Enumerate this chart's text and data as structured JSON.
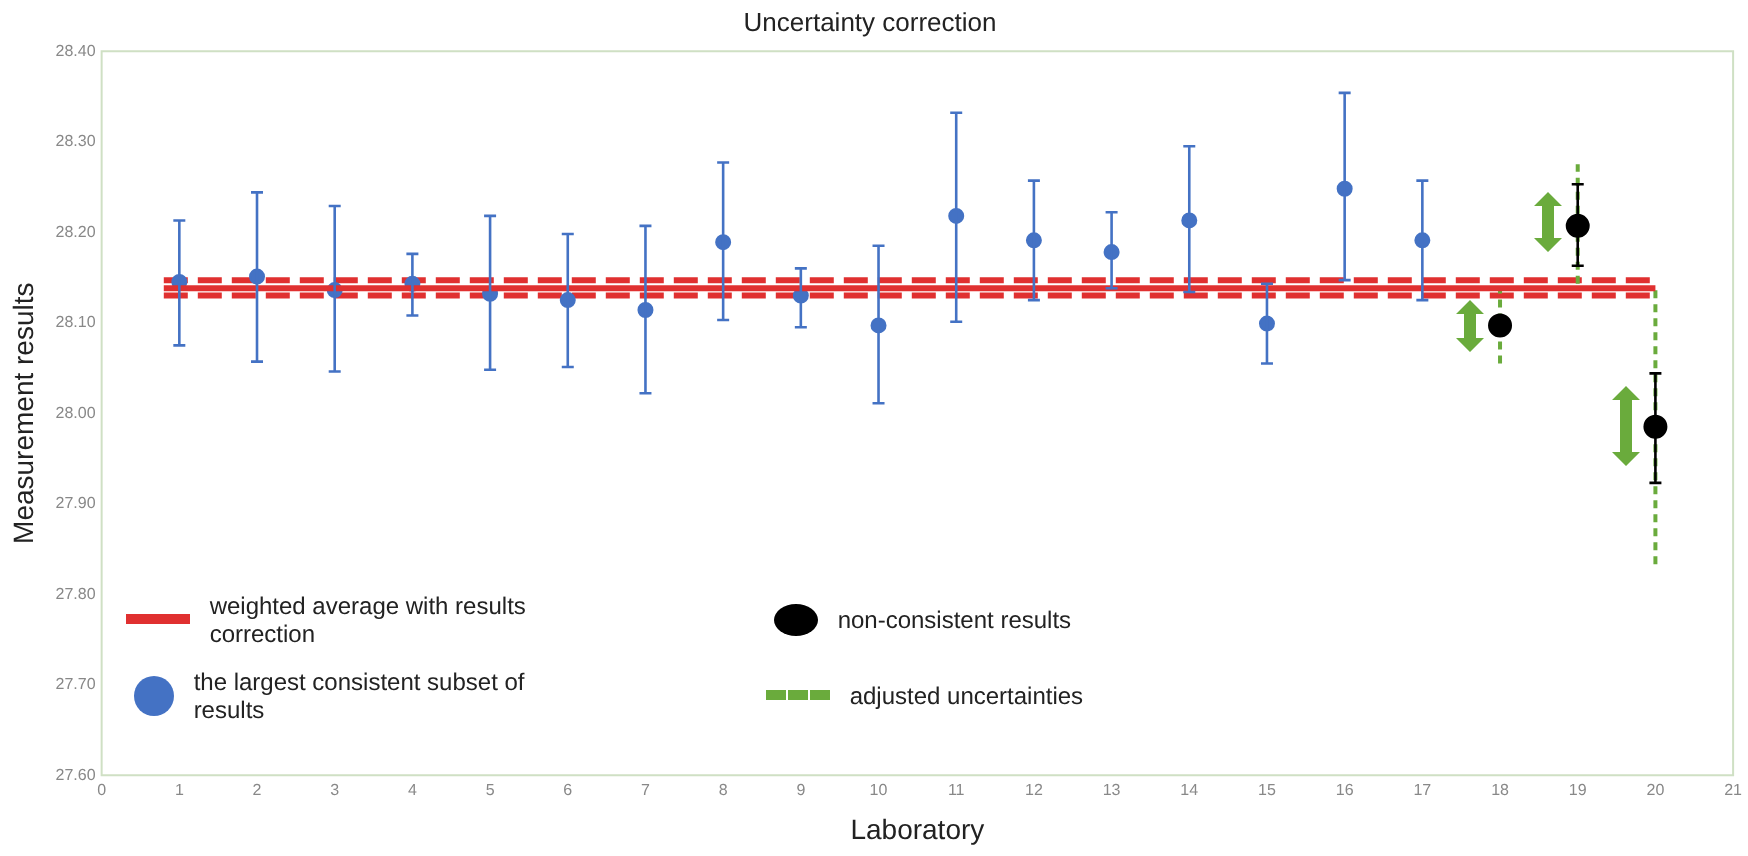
{
  "chart_data": {
    "type": "scatter",
    "title": "Uncertainty correction",
    "xlabel": "Laboratory",
    "ylabel": "Measurement results",
    "xlim": [
      0,
      21
    ],
    "xticks": [
      0,
      1,
      2,
      3,
      4,
      5,
      6,
      7,
      8,
      9,
      10,
      11,
      12,
      13,
      14,
      15,
      16,
      17,
      18,
      19,
      20,
      21
    ],
    "ylim": [
      27.6,
      28.4
    ],
    "yticks": [
      {
        "value": 27.6,
        "label": "27.60"
      },
      {
        "value": 27.7,
        "label": "27.70"
      },
      {
        "value": 27.8,
        "label": "27.80"
      },
      {
        "value": 27.9,
        "label": "27.90"
      },
      {
        "value": 28.0,
        "label": "28.00"
      },
      {
        "value": 28.1,
        "label": "28.10"
      },
      {
        "value": 28.2,
        "label": "28.20"
      },
      {
        "value": 28.3,
        "label": "28.30"
      },
      {
        "value": 28.4,
        "label": "28.40"
      }
    ],
    "grid": false,
    "legend": "bottom",
    "series": [
      {
        "name": "weighted average with results correction",
        "type": "line",
        "color": "#e03030",
        "line_style": "solid",
        "marker": "none",
        "x": [
          0.8,
          20
        ],
        "values": [
          28.138,
          28.138
        ]
      },
      {
        "name": "the largest consistent subset of results",
        "color": "#4472c4",
        "marker": "circle",
        "x": [
          1,
          2,
          3,
          4,
          5,
          6,
          7,
          8,
          9,
          10,
          11,
          12,
          13,
          14,
          15,
          16,
          17
        ],
        "values": [
          28.145,
          28.151,
          28.136,
          28.143,
          28.132,
          28.125,
          28.114,
          28.189,
          28.13,
          28.097,
          28.218,
          28.191,
          28.178,
          28.213,
          28.099,
          28.248,
          28.191
        ],
        "errors": [
          [
            28.075,
            28.213
          ],
          [
            28.057,
            28.244
          ],
          [
            28.046,
            28.229
          ],
          [
            28.108,
            28.176
          ],
          [
            28.048,
            28.218
          ],
          [
            28.051,
            28.198
          ],
          [
            28.022,
            28.207
          ],
          [
            28.103,
            28.277
          ],
          [
            28.095,
            28.16
          ],
          [
            28.011,
            28.185
          ],
          [
            28.101,
            28.332
          ],
          [
            28.125,
            28.257
          ],
          [
            28.138,
            28.222
          ],
          [
            28.134,
            28.295
          ],
          [
            28.055,
            28.143
          ],
          [
            28.147,
            28.354
          ],
          [
            28.125,
            28.257
          ]
        ]
      },
      {
        "name": "non-consistent results",
        "color": "#000000",
        "marker": "circle",
        "x": [
          18,
          19,
          20
        ],
        "values": [
          28.097,
          28.207,
          27.985
        ],
        "errors": [
          null,
          [
            28.163,
            28.253
          ],
          [
            27.923,
            28.044
          ]
        ]
      },
      {
        "name": "adjusted uncertainties",
        "type": "line",
        "color": "#6aab3c",
        "marker": "none",
        "line_style": "dotted",
        "x": [
          18,
          18,
          null,
          19,
          19,
          null,
          20,
          20
        ],
        "values": [
          28.055,
          28.138,
          null,
          28.143,
          28.275,
          null,
          27.833,
          28.138
        ]
      },
      {
        "type": "line",
        "color": "#e03030",
        "line_style": "dashed",
        "marker": "none",
        "x": [
          0.8,
          20
        ],
        "values": [
          28.147,
          28.147
        ]
      },
      {
        "type": "line",
        "color": "#e03030",
        "line_style": "dashed",
        "marker": "none",
        "x": [
          0.8,
          20
        ],
        "values": [
          28.13,
          28.13
        ]
      }
    ]
  }
}
